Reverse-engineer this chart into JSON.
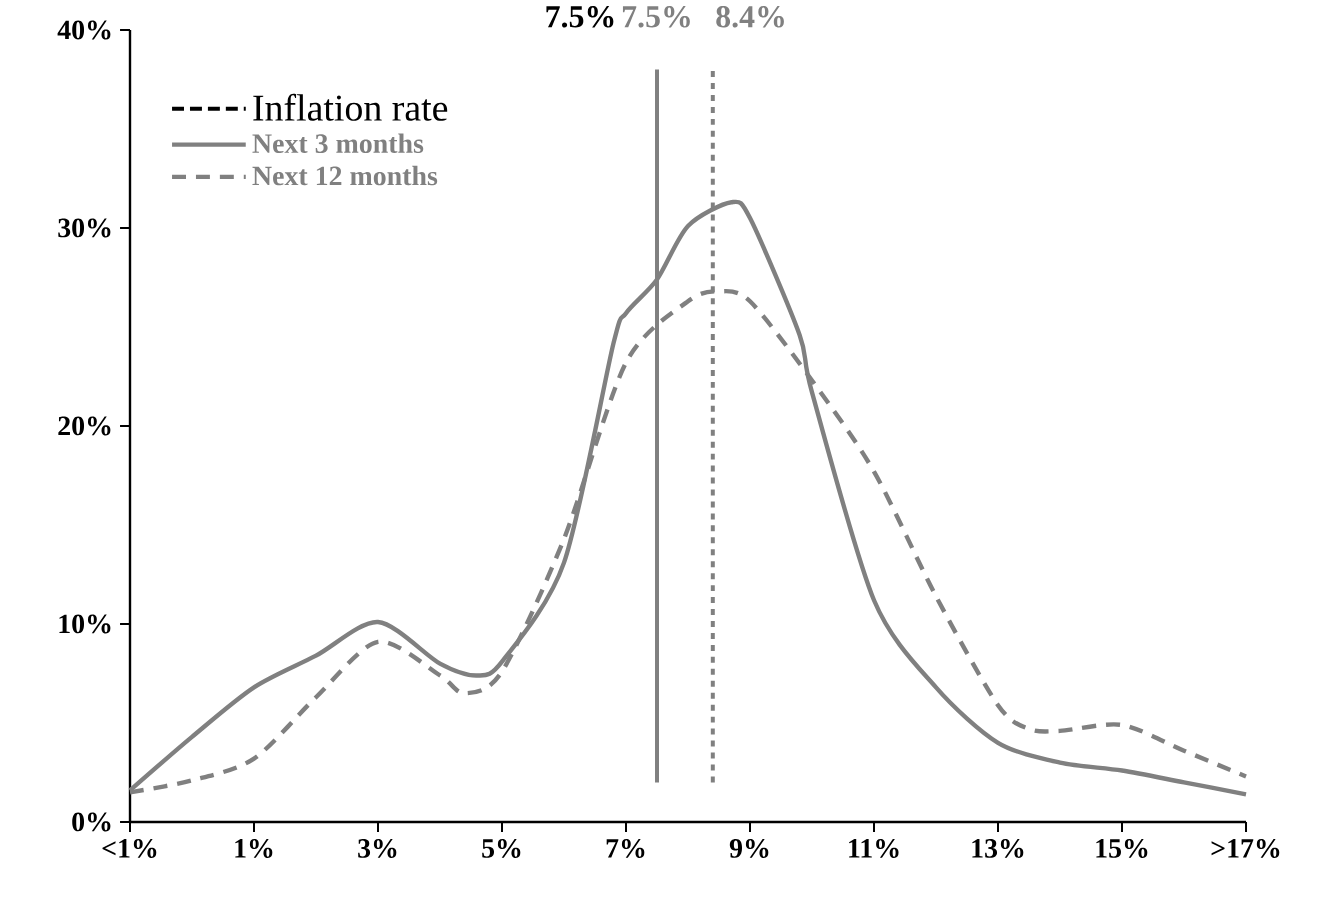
{
  "chart_data": {
    "type": "line",
    "legend_title": "Inflation rate",
    "legend": "top left",
    "annotations": [
      "7.5%"
    ],
    "xlim": [
      -1,
      17
    ],
    "xticks": [
      {
        "value": -1,
        "label": "<1%"
      },
      {
        "value": 1,
        "label": "1%"
      },
      {
        "value": 3,
        "label": "3%"
      },
      {
        "value": 5,
        "label": "5%"
      },
      {
        "value": 7,
        "label": "7%"
      },
      {
        "value": 9,
        "label": "9%"
      },
      {
        "value": 11,
        "label": "11%"
      },
      {
        "value": 13,
        "label": "13%"
      },
      {
        "value": 15,
        "label": "15%"
      },
      {
        "value": 17,
        "label": ">17%"
      }
    ],
    "ylim": [
      0,
      40
    ],
    "yticks": [
      {
        "value": 0,
        "label": "0%"
      },
      {
        "value": 10,
        "label": "10%"
      },
      {
        "value": 20,
        "label": "20%"
      },
      {
        "value": 30,
        "label": "30%"
      },
      {
        "value": 40,
        "label": "40%"
      }
    ],
    "series": [
      {
        "name": "Next 3 months",
        "color": "#808080",
        "line_style": "solid",
        "x": [
          -1,
          0,
          1,
          2,
          3,
          4,
          4.6,
          5,
          6,
          6.8,
          7,
          7.5,
          8,
          8.7,
          9,
          9.8,
          10,
          11,
          12,
          13,
          14,
          15,
          16,
          17
        ],
        "values": [
          1.6,
          4.3,
          6.8,
          8.4,
          10.1,
          8.0,
          7.4,
          8.1,
          13.1,
          24.2,
          25.7,
          27.4,
          30.1,
          31.3,
          30.5,
          24.6,
          21.7,
          11.2,
          6.8,
          4.0,
          3.0,
          2.6,
          2.0,
          1.4
        ]
      },
      {
        "name": "Next 12 months",
        "color": "#808080",
        "line_style": "dashed",
        "x": [
          -1,
          0,
          1,
          2,
          3,
          4,
          4.4,
          5,
          6,
          7,
          8,
          8.5,
          9,
          10,
          11,
          12,
          13,
          13.5,
          14,
          15,
          16,
          17
        ],
        "values": [
          1.5,
          2.1,
          3.2,
          6.3,
          9.1,
          7.4,
          6.5,
          7.6,
          14.3,
          23.2,
          26.3,
          26.8,
          26.3,
          22.3,
          17.7,
          11.4,
          5.9,
          4.7,
          4.6,
          4.9,
          3.6,
          2.3
        ]
      }
    ],
    "ref_lines": [
      {
        "axis": "x",
        "value": 7.5,
        "label": "7.5%",
        "color": "#808080",
        "line_style": "solid"
      },
      {
        "axis": "x",
        "value": 8.4,
        "label": "8.4%",
        "color": "#808080",
        "line_style": "dotted"
      }
    ]
  }
}
